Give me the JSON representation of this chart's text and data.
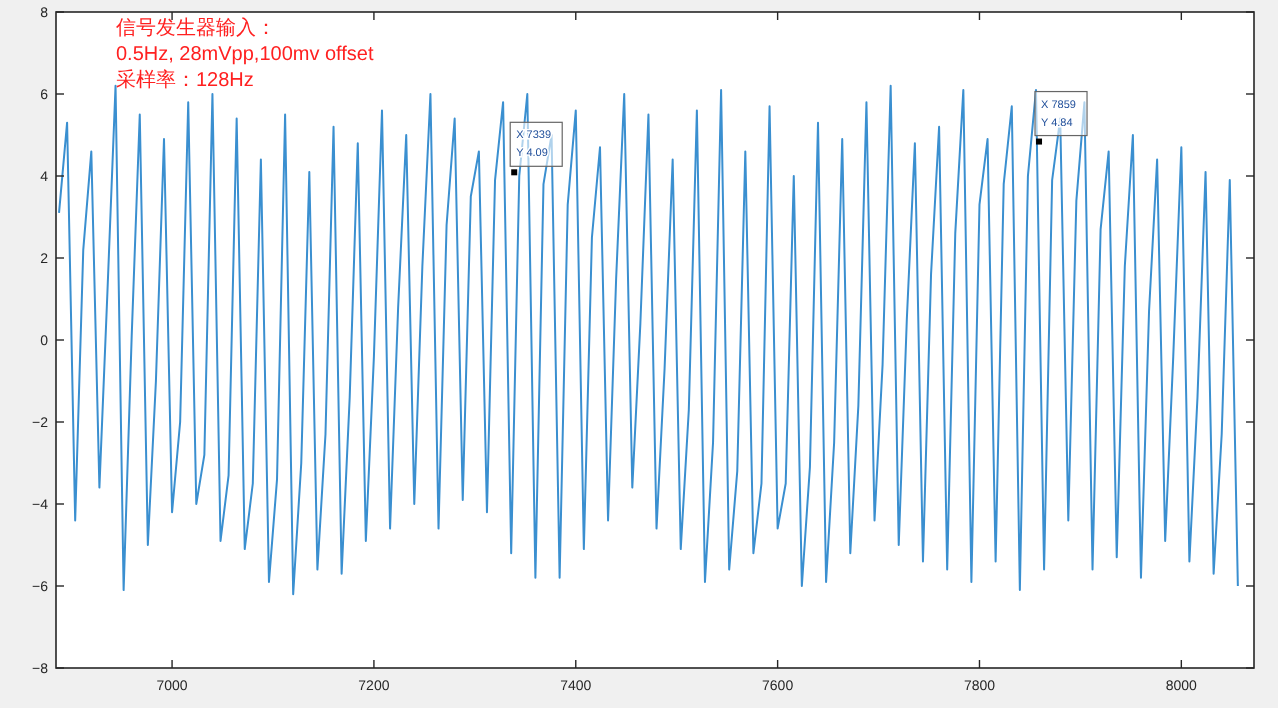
{
  "chart_data": {
    "type": "line",
    "x": [
      6888,
      6896,
      6904,
      6912,
      6920,
      6928,
      6936,
      6944,
      6952,
      6960,
      6968,
      6976,
      6984,
      6992,
      7000,
      7008,
      7016,
      7024,
      7032,
      7040,
      7048,
      7056,
      7064,
      7072,
      7080,
      7088,
      7096,
      7104,
      7112,
      7120,
      7128,
      7136,
      7144,
      7152,
      7160,
      7168,
      7176,
      7184,
      7192,
      7200,
      7208,
      7216,
      7224,
      7232,
      7240,
      7248,
      7256,
      7264,
      7272,
      7280,
      7288,
      7296,
      7304,
      7312,
      7320,
      7328,
      7336,
      7344,
      7352,
      7360,
      7368,
      7376,
      7384,
      7392,
      7400,
      7408,
      7416,
      7424,
      7432,
      7440,
      7448,
      7456,
      7464,
      7472,
      7480,
      7488,
      7496,
      7504,
      7512,
      7520,
      7528,
      7536,
      7544,
      7552,
      7560,
      7568,
      7576,
      7584,
      7592,
      7600,
      7608,
      7616,
      7624,
      7632,
      7640,
      7648,
      7656,
      7664,
      7672,
      7680,
      7688,
      7696,
      7704,
      7712,
      7720,
      7728,
      7736,
      7744,
      7752,
      7760,
      7768,
      7776,
      7784,
      7792,
      7800,
      7808,
      7816,
      7824,
      7832,
      7840,
      7848,
      7856,
      7864,
      7872,
      7880,
      7888,
      7896,
      7904,
      7912,
      7920,
      7928,
      7936,
      7944,
      7952,
      7960,
      7968,
      7976,
      7984,
      7992,
      8000,
      8008,
      8016,
      8024,
      8032,
      8040,
      8048,
      8056
    ],
    "series": [
      {
        "color": "#3a8fd0",
        "values": [
          3.1,
          5.3,
          -4.4,
          2.2,
          4.6,
          -3.6,
          1.2,
          6.2,
          -6.1,
          0.1,
          5.5,
          -5.0,
          -1.0,
          4.9,
          -4.2,
          -2.0,
          5.8,
          -4.0,
          -2.8,
          6.0,
          -4.9,
          -3.3,
          5.4,
          -5.1,
          -3.5,
          4.4,
          -5.9,
          -3.4,
          5.5,
          -6.2,
          -3.0,
          4.1,
          -5.6,
          -2.3,
          5.2,
          -5.7,
          -1.4,
          4.8,
          -4.9,
          -0.4,
          5.6,
          -4.6,
          0.8,
          5.0,
          -4.0,
          1.8,
          6.0,
          -4.6,
          2.8,
          5.4,
          -3.9,
          3.5,
          4.6,
          -4.2,
          3.9,
          5.8,
          -5.2,
          4.0,
          6.0,
          -5.8,
          3.8,
          5.0,
          -5.8,
          3.3,
          5.6,
          -5.1,
          2.5,
          4.7,
          -4.4,
          1.5,
          6.0,
          -3.6,
          0.4,
          5.5,
          -4.6,
          -0.7,
          4.4,
          -5.1,
          -1.7,
          5.6,
          -5.9,
          -2.5,
          6.1,
          -5.6,
          -3.2,
          4.6,
          -5.2,
          -3.5,
          5.7,
          -4.6,
          -3.5,
          4.0,
          -6.0,
          -3.1,
          5.3,
          -5.9,
          -2.5,
          4.9,
          -5.2,
          -1.6,
          5.8,
          -4.4,
          -0.6,
          6.2,
          -5.0,
          0.5,
          4.8,
          -5.4,
          1.6,
          5.2,
          -5.6,
          2.6,
          6.1,
          -5.9,
          3.3,
          4.9,
          -5.4,
          3.8,
          5.7,
          -6.1,
          4.0,
          6.1,
          -5.6,
          3.9,
          5.4,
          -4.4,
          3.4,
          5.8,
          -5.6,
          2.7,
          4.6,
          -5.3,
          1.8,
          5.0,
          -5.8,
          0.7,
          4.4,
          -4.9,
          -0.4,
          4.7,
          -5.4,
          -1.4,
          4.1,
          -5.7,
          -2.3,
          3.9,
          -6.0
        ]
      }
    ],
    "xlim": [
      6885,
      8072
    ],
    "ylim": [
      -8,
      8
    ],
    "xticks": [
      7000,
      7200,
      7400,
      7600,
      7800,
      8000
    ],
    "yticks": [
      -8,
      -6,
      -4,
      -2,
      0,
      2,
      4,
      6,
      8
    ],
    "grid": false,
    "line_style": "solid",
    "marker": "none",
    "annotations": [
      {
        "text": "X 7339\nY 4.09",
        "x": 7339,
        "y": 4.09
      },
      {
        "text": "X 7859\nY 4.84",
        "x": 7859,
        "y": 4.84
      },
      "信号发生器输入：\n0.5Hz, 28mVpp,100mv offset\n采样率：128Hz"
    ]
  }
}
